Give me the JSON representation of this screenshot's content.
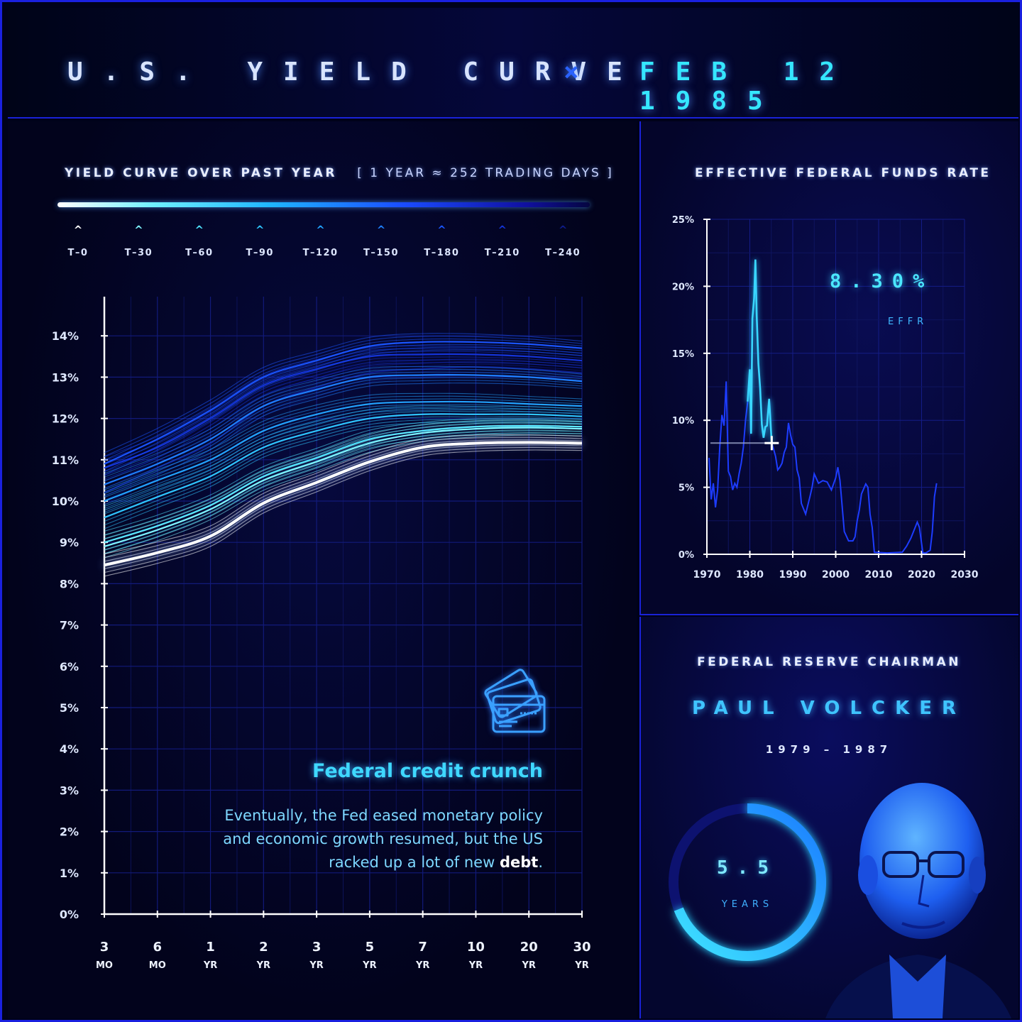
{
  "title": {
    "left": "U.S. YIELD CURVE",
    "separator": "×",
    "right": "FEB 12 1985"
  },
  "yield_panel": {
    "heading": "YIELD CURVE OVER PAST YEAR",
    "subheading": "[ 1 YEAR ≈ 252 TRADING DAYS ]",
    "legend": [
      {
        "label": "T–0",
        "color": "#ffffff"
      },
      {
        "label": "T–30",
        "color": "#7ff4ff"
      },
      {
        "label": "T–60",
        "color": "#4fe4ff"
      },
      {
        "label": "T–90",
        "color": "#2fc6ff"
      },
      {
        "label": "T–120",
        "color": "#23a4ff"
      },
      {
        "label": "T–150",
        "color": "#1f80ff"
      },
      {
        "label": "T–180",
        "color": "#1a55ff"
      },
      {
        "label": "T–210",
        "color": "#1434d8"
      },
      {
        "label": "T–240",
        "color": "#0e1c8a"
      }
    ],
    "credit_icon": "credit-card-icon",
    "callout_title": "Federal credit crunch",
    "callout_body_pre": "Eventually, the Fed eased monetary policy and economic growth resumed, but the US racked up a lot of new ",
    "callout_body_bold": "debt",
    "callout_body_post": "."
  },
  "effr_panel": {
    "heading": "EFFECTIVE FEDERAL FUNDS RATE",
    "value": "8.30%",
    "label": "EFFR"
  },
  "chair_panel": {
    "heading": "FEDERAL RESERVE CHAIRMAN",
    "name": "PAUL VOLCKER",
    "term": "1979 – 1987",
    "tenure_value": "5.5",
    "tenure_label": "YEARS",
    "tenure_fraction": 0.69,
    "portrait": "portrait-icon"
  },
  "colors": {
    "accent": "#35e6ff",
    "blue": "#1a4cff",
    "border": "#1a22d8"
  },
  "chart_data": [
    {
      "type": "line",
      "title": "YIELD CURVE OVER PAST YEAR",
      "categories": [
        "3 MO",
        "6 MO",
        "1 YR",
        "2 YR",
        "3 YR",
        "5 YR",
        "7 YR",
        "10 YR",
        "20 YR",
        "30 YR"
      ],
      "x_tick_labels": [
        [
          "3",
          "MO"
        ],
        [
          "6",
          "MO"
        ],
        [
          "1",
          "YR"
        ],
        [
          "2",
          "YR"
        ],
        [
          "3",
          "YR"
        ],
        [
          "5",
          "YR"
        ],
        [
          "7",
          "YR"
        ],
        [
          "10",
          "YR"
        ],
        [
          "20",
          "YR"
        ],
        [
          "30",
          "YR"
        ]
      ],
      "y_ticks": [
        "0%",
        "1%",
        "2%",
        "3%",
        "4%",
        "5%",
        "6%",
        "7%",
        "8%",
        "9%",
        "10%",
        "11%",
        "12%",
        "13%",
        "14%"
      ],
      "ylim": [
        0,
        15
      ],
      "grid": true,
      "series": [
        {
          "label": "T–0",
          "values": [
            8.45,
            8.75,
            9.15,
            9.95,
            10.45,
            10.95,
            11.3,
            11.4,
            11.42,
            11.4
          ]
        },
        {
          "label": "T–30",
          "values": [
            8.9,
            9.3,
            9.8,
            10.5,
            10.95,
            11.4,
            11.65,
            11.75,
            11.78,
            11.75
          ]
        },
        {
          "label": "T–60",
          "values": [
            9.0,
            9.4,
            9.9,
            10.6,
            11.05,
            11.5,
            11.7,
            11.8,
            11.82,
            11.8
          ]
        },
        {
          "label": "T–90",
          "values": [
            9.6,
            10.1,
            10.6,
            11.3,
            11.7,
            12.0,
            12.1,
            12.1,
            12.1,
            12.05
          ]
        },
        {
          "label": "T–120",
          "values": [
            10.0,
            10.5,
            11.0,
            11.7,
            12.1,
            12.35,
            12.4,
            12.4,
            12.35,
            12.3
          ]
        },
        {
          "label": "T–150",
          "values": [
            10.4,
            10.9,
            11.5,
            12.3,
            12.7,
            13.0,
            13.05,
            13.05,
            13.0,
            12.9
          ]
        },
        {
          "label": "T–180",
          "values": [
            10.9,
            11.5,
            12.2,
            13.0,
            13.4,
            13.75,
            13.85,
            13.85,
            13.8,
            13.7
          ]
        },
        {
          "label": "T–210",
          "values": [
            10.8,
            11.3,
            12.0,
            12.8,
            13.2,
            13.5,
            13.55,
            13.55,
            13.5,
            13.4
          ]
        },
        {
          "label": "T–240",
          "values": [
            10.2,
            10.8,
            11.4,
            12.3,
            12.75,
            13.1,
            13.2,
            13.25,
            13.2,
            13.1
          ]
        }
      ]
    },
    {
      "type": "line",
      "title": "EFFECTIVE FEDERAL FUNDS RATE",
      "x_ticks": [
        "1970",
        "1980",
        "1990",
        "2000",
        "2010",
        "2020",
        "2030"
      ],
      "y_ticks": [
        "0%",
        "5%",
        "10%",
        "15%",
        "20%",
        "25%"
      ],
      "xlim": [
        1970,
        2030
      ],
      "ylim": [
        0,
        25
      ],
      "grid": true,
      "marker": {
        "x": 1985.1,
        "y": 8.3
      },
      "series": [
        {
          "x": [
            1970.5,
            1971.0,
            1971.5,
            1972.0,
            1972.5,
            1973.0,
            1973.5,
            1974.0,
            1974.5,
            1975.0,
            1975.5,
            1976.0,
            1976.5,
            1977.0,
            1977.5,
            1978.0,
            1978.5,
            1979.0,
            1979.5,
            1980.0,
            1980.3,
            1980.6,
            1981.0,
            1981.3,
            1981.6,
            1982.0,
            1982.4,
            1982.8,
            1983.2,
            1983.6,
            1984.0,
            1984.5,
            1985.1,
            1985.5,
            1986.0,
            1986.5,
            1987.0,
            1987.5,
            1988.0,
            1988.5,
            1989.0,
            1989.5,
            1990.0,
            1990.5,
            1991.0,
            1991.5,
            1992.0,
            1993.0,
            1994.0,
            1994.5,
            1995.0,
            1996.0,
            1997.0,
            1998.0,
            1999.0,
            2000.0,
            2000.5,
            2001.0,
            2001.5,
            2002.0,
            2003.0,
            2004.0,
            2004.5,
            2005.0,
            2005.5,
            2006.0,
            2007.0,
            2007.5,
            2008.0,
            2008.5,
            2009.0,
            2012.0,
            2015.5,
            2016.5,
            2017.5,
            2018.5,
            2019.0,
            2019.5,
            2020.3,
            2021.0,
            2022.0,
            2022.5,
            2023.0,
            2023.5
          ],
          "y": [
            7.2,
            4.1,
            5.3,
            3.5,
            4.8,
            8.0,
            10.4,
            9.6,
            12.9,
            6.2,
            5.8,
            4.8,
            5.3,
            5.0,
            6.0,
            6.8,
            8.0,
            10.0,
            11.4,
            13.8,
            9.0,
            17.6,
            19.1,
            22.0,
            17.8,
            14.2,
            12.4,
            9.7,
            8.7,
            9.5,
            9.6,
            11.6,
            8.3,
            7.9,
            7.3,
            6.3,
            6.5,
            6.8,
            7.6,
            8.0,
            9.8,
            8.9,
            8.2,
            8.0,
            6.3,
            5.7,
            3.8,
            3.0,
            4.3,
            5.0,
            6.0,
            5.3,
            5.5,
            5.4,
            4.8,
            5.7,
            6.5,
            5.5,
            3.6,
            1.7,
            1.0,
            1.0,
            1.3,
            2.5,
            3.3,
            4.5,
            5.25,
            5.0,
            3.0,
            2.0,
            0.15,
            0.1,
            0.15,
            0.6,
            1.2,
            2.0,
            2.4,
            2.0,
            0.1,
            0.1,
            0.3,
            1.7,
            4.3,
            5.3
          ]
        }
      ]
    }
  ]
}
